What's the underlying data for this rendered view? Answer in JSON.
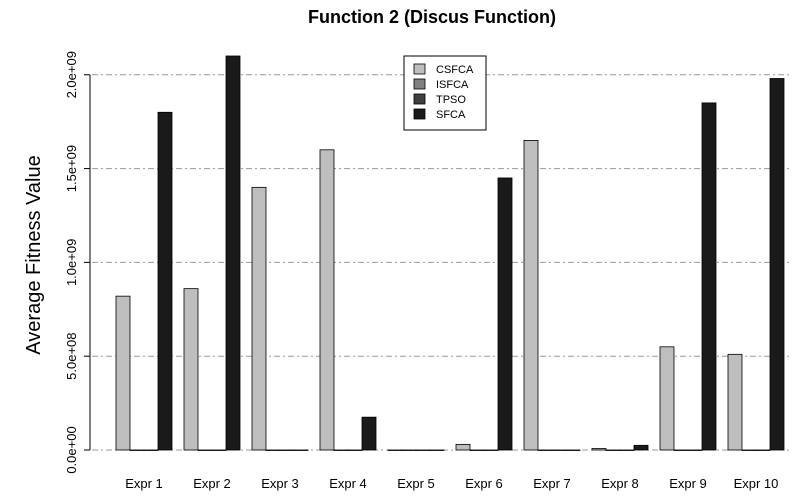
{
  "chart_data": {
    "type": "bar",
    "title": "Function 2 (Discus Function)",
    "ylabel": "Average Fitness Value",
    "xlabel": "",
    "categories": [
      "Expr 1",
      "Expr 2",
      "Expr 3",
      "Expr 4",
      "Expr 5",
      "Expr 6",
      "Expr 7",
      "Expr 8",
      "Expr 9",
      "Expr 10"
    ],
    "ylim": [
      0,
      2100000000
    ],
    "yticks": [
      0,
      500000000,
      1000000000,
      1500000000,
      2000000000
    ],
    "ytick_labels": [
      "0.0e+00",
      "5.0e+08",
      "1.0e+09",
      "1.5e+09",
      "2.0e+09"
    ],
    "grid": "horizontal dashed",
    "legend_position": "top-center",
    "series": [
      {
        "name": "CSFCA",
        "color": "#bebebe",
        "values": [
          820000000,
          860000000,
          1400000000,
          1600000000,
          0,
          30000000,
          1650000000,
          8000000,
          550000000,
          510000000
        ]
      },
      {
        "name": "ISFCA",
        "color": "#808080",
        "values": [
          0,
          0,
          0,
          0,
          0,
          0,
          0,
          0,
          0,
          0
        ]
      },
      {
        "name": "TPSO",
        "color": "#404040",
        "values": [
          0,
          0,
          0,
          0,
          0,
          0,
          0,
          0,
          0,
          0
        ]
      },
      {
        "name": "SFCA",
        "color": "#1a1a1a",
        "values": [
          1800000000,
          2100000000,
          0,
          175000000,
          0,
          1450000000,
          0,
          25000000,
          1850000000,
          1980000000
        ]
      }
    ]
  }
}
